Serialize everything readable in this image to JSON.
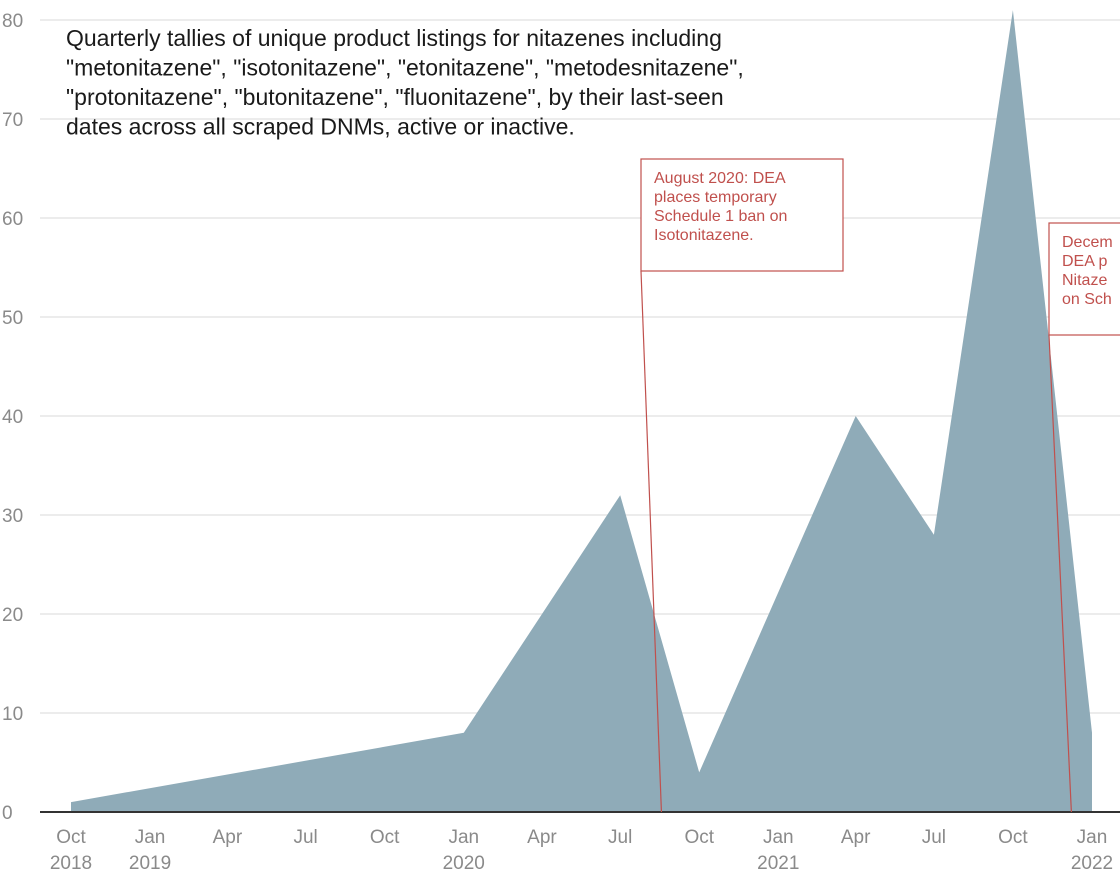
{
  "colors": {
    "area_fill": "#8fabb8",
    "grid": "#e6e6e6",
    "axis": "#333333",
    "annotation": "#c0504d",
    "tick_text": "#8a8a8a",
    "title_text": "#1a1a1a"
  },
  "chart_data": {
    "type": "area",
    "title_lines": [
      "Quarterly tallies of unique product listings for nitazenes including",
      "\"metonitazene\", \"isotonitazene\", \"etonitazene\", \"metodesnitazene\",",
      "\"protonitazene\", \"butonitazene\", \"fluonitazene\", by their last-seen",
      "dates across all scraped DNMs, active or inactive."
    ],
    "xlabel": "",
    "ylabel": "",
    "ylim": [
      0,
      80
    ],
    "y_ticks": [
      "0",
      "10",
      "20",
      "30",
      "40",
      "50",
      "60",
      "70",
      "80"
    ],
    "x_ticks": [
      {
        "date": "2018-10-01",
        "label": "Oct",
        "year": "2018"
      },
      {
        "date": "2019-01-01",
        "label": "Jan",
        "year": "2019"
      },
      {
        "date": "2019-04-01",
        "label": "Apr",
        "year": ""
      },
      {
        "date": "2019-07-01",
        "label": "Jul",
        "year": ""
      },
      {
        "date": "2019-10-01",
        "label": "Oct",
        "year": ""
      },
      {
        "date": "2020-01-01",
        "label": "Jan",
        "year": "2020"
      },
      {
        "date": "2020-04-01",
        "label": "Apr",
        "year": ""
      },
      {
        "date": "2020-07-01",
        "label": "Jul",
        "year": ""
      },
      {
        "date": "2020-10-01",
        "label": "Oct",
        "year": ""
      },
      {
        "date": "2021-01-01",
        "label": "Jan",
        "year": "2021"
      },
      {
        "date": "2021-04-01",
        "label": "Apr",
        "year": ""
      },
      {
        "date": "2021-07-01",
        "label": "Jul",
        "year": ""
      },
      {
        "date": "2021-10-01",
        "label": "Oct",
        "year": ""
      },
      {
        "date": "2022-01-01",
        "label": "Jan",
        "year": "2022"
      }
    ],
    "points": [
      {
        "x": "2018-10-01",
        "y": 1
      },
      {
        "x": "2020-01-01",
        "y": 8
      },
      {
        "x": "2020-07-01",
        "y": 32
      },
      {
        "x": "2020-10-01",
        "y": 4
      },
      {
        "x": "2021-04-01",
        "y": 40
      },
      {
        "x": "2021-07-01",
        "y": 28
      },
      {
        "x": "2021-10-01",
        "y": 81
      },
      {
        "x": "2022-01-01",
        "y": 8
      }
    ],
    "annotations": [
      {
        "date": "2020-08-18",
        "lines": [
          "August 2020: DEA",
          "places temporary",
          "Schedule 1 ban on",
          "Isotonitazene."
        ]
      },
      {
        "date": "2021-12-08",
        "lines": [
          "Decem",
          "DEA p",
          "Nitaze",
          "on Sch"
        ]
      }
    ]
  }
}
